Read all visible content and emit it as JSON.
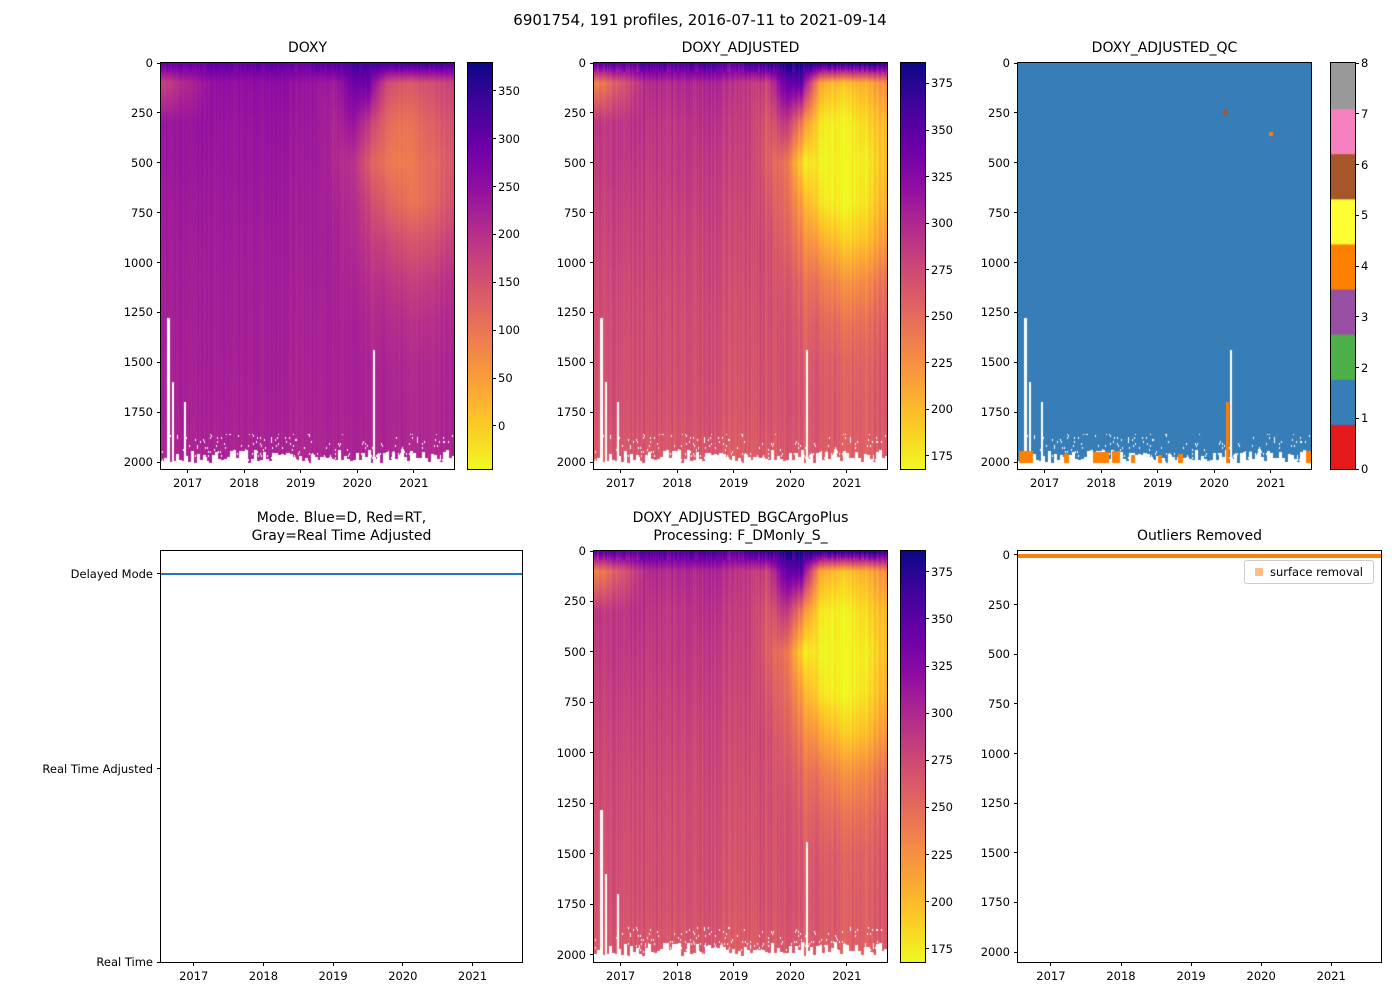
{
  "figure": {
    "title": "6901754, 191 profiles, 2016-07-11 to 2021-09-14"
  },
  "chart_data": [
    {
      "id": "doxy",
      "type": "heatmap",
      "title": "DOXY",
      "colormap": "plasma_r",
      "x_range": [
        2016.53,
        2021.71
      ],
      "x_ticks": [
        2017,
        2018,
        2019,
        2020,
        2021
      ],
      "depth_range": [
        0,
        2000
      ],
      "depth_ticks": [
        0,
        250,
        500,
        750,
        1000,
        1250,
        1500,
        1750,
        2000
      ],
      "vmin": -45,
      "vmax": 379,
      "colorbar_ticks": [
        0,
        50,
        100,
        150,
        200,
        250,
        300,
        350
      ],
      "x": [
        2016.6,
        2016.9,
        2017.2,
        2017.5,
        2017.8,
        2018.1,
        2018.4,
        2018.7,
        2019.0,
        2019.3,
        2019.6,
        2019.9,
        2020.2,
        2020.5,
        2020.8,
        2021.1,
        2021.4,
        2021.7
      ],
      "depths": [
        0,
        100,
        300,
        500,
        700,
        900,
        1100,
        1300,
        1500,
        1750,
        2000
      ],
      "values": [
        [
          295,
          300,
          298,
          305,
          300,
          298,
          306,
          302,
          299,
          305,
          315,
          325,
          338,
          330,
          340,
          348,
          342,
          332
        ],
        [
          175,
          205,
          228,
          248,
          246,
          250,
          248,
          250,
          245,
          238,
          228,
          282,
          292,
          165,
          140,
          150,
          162,
          172
        ],
        [
          238,
          236,
          242,
          240,
          238,
          240,
          242,
          240,
          238,
          234,
          215,
          240,
          190,
          120,
          100,
          118,
          138,
          150
        ],
        [
          235,
          236,
          238,
          235,
          236,
          238,
          236,
          235,
          234,
          232,
          210,
          200,
          140,
          100,
          90,
          108,
          122,
          142
        ],
        [
          230,
          232,
          233,
          231,
          232,
          233,
          232,
          231,
          230,
          229,
          219,
          205,
          170,
          130,
          110,
          105,
          128,
          150
        ],
        [
          228,
          229,
          230,
          229,
          230,
          229,
          228,
          229,
          228,
          227,
          222,
          209,
          189,
          169,
          152,
          148,
          160,
          176
        ],
        [
          225,
          226,
          226,
          226,
          226,
          226,
          226,
          226,
          225,
          225,
          222,
          215,
          204,
          194,
          184,
          180,
          190,
          201
        ],
        [
          224,
          224,
          225,
          224,
          225,
          224,
          224,
          224,
          224,
          223,
          222,
          219,
          213,
          207,
          202,
          200,
          205,
          210
        ],
        [
          222,
          223,
          223,
          223,
          223,
          223,
          223,
          222,
          222,
          222,
          221,
          220,
          217,
          214,
          211,
          210,
          212,
          215
        ],
        [
          220,
          221,
          221,
          221,
          221,
          221,
          221,
          220,
          220,
          220,
          220,
          219,
          218,
          216,
          214,
          214,
          215,
          217
        ],
        [
          215,
          216,
          216,
          216,
          216,
          216,
          216,
          215,
          215,
          215,
          215,
          215,
          214,
          213,
          212,
          212,
          213,
          214
        ]
      ],
      "gaps": [
        {
          "x": 2016.66,
          "from_depth": 1280
        },
        {
          "x": 2016.74,
          "from_depth": 1600
        },
        {
          "x": 2016.95,
          "from_depth": 1700
        },
        {
          "x": 2020.3,
          "from_depth": 1440
        }
      ]
    },
    {
      "id": "doxy_adjusted",
      "type": "heatmap",
      "title": "DOXY_ADJUSTED",
      "colormap": "plasma_r",
      "x_range": [
        2016.53,
        2021.71
      ],
      "x_ticks": [
        2017,
        2018,
        2019,
        2020,
        2021
      ],
      "depth_range": [
        0,
        2000
      ],
      "depth_ticks": [
        0,
        250,
        500,
        750,
        1000,
        1250,
        1500,
        1750,
        2000
      ],
      "vmin": 168,
      "vmax": 386,
      "colorbar_ticks": [
        175,
        200,
        225,
        250,
        275,
        300,
        325,
        350,
        375
      ],
      "x": [
        2016.6,
        2016.9,
        2017.2,
        2017.5,
        2017.8,
        2018.1,
        2018.4,
        2018.7,
        2019.0,
        2019.3,
        2019.6,
        2019.9,
        2020.2,
        2020.5,
        2020.8,
        2021.1,
        2021.4,
        2021.7
      ],
      "depths": [
        0,
        100,
        300,
        500,
        700,
        900,
        1100,
        1300,
        1500,
        1750,
        2000
      ],
      "values": [
        [
          350,
          355,
          352,
          360,
          356,
          352,
          362,
          358,
          354,
          362,
          368,
          375,
          380,
          376,
          380,
          383,
          380,
          374
        ],
        [
          235,
          255,
          278,
          298,
          296,
          300,
          298,
          300,
          295,
          288,
          278,
          340,
          348,
          215,
          195,
          200,
          212,
          225
        ],
        [
          288,
          286,
          292,
          290,
          288,
          290,
          292,
          290,
          288,
          284,
          262,
          288,
          238,
          178,
          170,
          176,
          190,
          200
        ],
        [
          285,
          286,
          288,
          285,
          286,
          288,
          286,
          285,
          284,
          282,
          258,
          245,
          185,
          170,
          168,
          172,
          180,
          198
        ],
        [
          280,
          282,
          283,
          281,
          282,
          283,
          282,
          281,
          280,
          279,
          266,
          250,
          215,
          180,
          170,
          172,
          186,
          205
        ],
        [
          277,
          278,
          279,
          278,
          279,
          278,
          277,
          278,
          277,
          276,
          271,
          257,
          236,
          212,
          196,
          192,
          204,
          220
        ],
        [
          274,
          275,
          275,
          275,
          275,
          275,
          275,
          275,
          274,
          274,
          271,
          264,
          252,
          240,
          229,
          225,
          235,
          246
        ],
        [
          272,
          272,
          273,
          272,
          273,
          272,
          272,
          272,
          272,
          271,
          270,
          267,
          260,
          253,
          248,
          246,
          251,
          256
        ],
        [
          270,
          271,
          271,
          271,
          271,
          271,
          271,
          270,
          270,
          270,
          269,
          268,
          264,
          261,
          258,
          257,
          259,
          262
        ],
        [
          268,
          269,
          269,
          269,
          269,
          269,
          269,
          268,
          268,
          268,
          268,
          267,
          266,
          263,
          261,
          261,
          262,
          264
        ],
        [
          262,
          263,
          263,
          263,
          263,
          263,
          263,
          262,
          262,
          262,
          262,
          262,
          261,
          260,
          259,
          259,
          260,
          261
        ]
      ],
      "gaps": [
        {
          "x": 2016.66,
          "from_depth": 1280
        },
        {
          "x": 2016.74,
          "from_depth": 1600
        },
        {
          "x": 2016.95,
          "from_depth": 1700
        },
        {
          "x": 2020.3,
          "from_depth": 1440
        }
      ]
    },
    {
      "id": "doxy_adjusted_qc",
      "type": "heatmap",
      "title": "DOXY_ADJUSTED_QC",
      "x_range": [
        2016.53,
        2021.71
      ],
      "x_ticks": [
        2017,
        2018,
        2019,
        2020,
        2021
      ],
      "depth_range": [
        0,
        2000
      ],
      "depth_ticks": [
        0,
        250,
        500,
        750,
        1000,
        1250,
        1500,
        1750,
        2000
      ],
      "flag_values": [
        0,
        1,
        2,
        3,
        4,
        5,
        6,
        7,
        8
      ],
      "colors": [
        "#e41a1c",
        "#377eb8",
        "#4daf4a",
        "#984ea3",
        "#ff7f00",
        "#ffff33",
        "#a65628",
        "#f781bf",
        "#999999"
      ],
      "colorbar_ticks": [
        0,
        1,
        2,
        3,
        4,
        5,
        6,
        7,
        8
      ],
      "base_value": 1,
      "marks": [
        {
          "x0": 2016.54,
          "x1": 2016.8,
          "d0": 1945,
          "d1": 2005,
          "flag": 4
        },
        {
          "x0": 2017.35,
          "x1": 2017.43,
          "d0": 1962,
          "d1": 2005,
          "flag": 4
        },
        {
          "x0": 2017.86,
          "x1": 2018.14,
          "d0": 1952,
          "d1": 2005,
          "flag": 4
        },
        {
          "x0": 2018.2,
          "x1": 2018.34,
          "d0": 1946,
          "d1": 2005,
          "flag": 4
        },
        {
          "x0": 2018.52,
          "x1": 2018.59,
          "d0": 1965,
          "d1": 2005,
          "flag": 4
        },
        {
          "x0": 2019.0,
          "x1": 2019.08,
          "d0": 1965,
          "d1": 2005,
          "flag": 4
        },
        {
          "x0": 2019.36,
          "x1": 2019.44,
          "d0": 1960,
          "d1": 2005,
          "flag": 4
        },
        {
          "x0": 2020.2,
          "x1": 2020.26,
          "d0": 1700,
          "d1": 2005,
          "flag": 4
        },
        {
          "x0": 2021.62,
          "x1": 2021.71,
          "d0": 1945,
          "d1": 2005,
          "flag": 4
        },
        {
          "x0": 2020.16,
          "x1": 2020.22,
          "d0": 235,
          "d1": 262,
          "flag": 6
        },
        {
          "x0": 2020.97,
          "x1": 2021.04,
          "d0": 345,
          "d1": 368,
          "flag": 4
        }
      ],
      "gaps": [
        {
          "x": 2016.66,
          "from_depth": 1280
        },
        {
          "x": 2016.74,
          "from_depth": 1600
        },
        {
          "x": 2016.95,
          "from_depth": 1700
        },
        {
          "x": 2020.3,
          "from_depth": 1440
        }
      ]
    },
    {
      "id": "mode",
      "type": "line",
      "title": "Mode. Blue=D, Red=RT,\nGray=Real Time Adjusted",
      "x_range": [
        2016.53,
        2021.71
      ],
      "x_ticks": [
        2017,
        2018,
        2019,
        2020,
        2021
      ],
      "y_categories": [
        "Delayed Mode",
        "Real Time Adjusted",
        "Real Time"
      ],
      "series": [
        {
          "name": "mode",
          "value": "Delayed Mode",
          "color": "#1f77b4"
        }
      ]
    },
    {
      "id": "doxy_adjusted_bgcargoplus",
      "type": "heatmap",
      "title": "DOXY_ADJUSTED_BGCArgoPlus\nProcessing: F_DMonly_S_",
      "colormap": "plasma_r",
      "x_range": [
        2016.53,
        2021.71
      ],
      "x_ticks": [
        2017,
        2018,
        2019,
        2020,
        2021
      ],
      "depth_range": [
        0,
        2000
      ],
      "depth_ticks": [
        0,
        250,
        500,
        750,
        1000,
        1250,
        1500,
        1750,
        2000
      ],
      "vmin": 168,
      "vmax": 386,
      "colorbar_ticks": [
        175,
        200,
        225,
        250,
        275,
        300,
        325,
        350,
        375
      ],
      "values_from": 1,
      "gaps": [
        {
          "x": 2016.66,
          "from_depth": 1280
        },
        {
          "x": 2016.74,
          "from_depth": 1600
        },
        {
          "x": 2016.95,
          "from_depth": 1700
        },
        {
          "x": 2020.3,
          "from_depth": 1440
        }
      ]
    },
    {
      "id": "outliers_removed",
      "type": "scatter",
      "title": "Outliers Removed",
      "x_range": [
        2016.53,
        2021.71
      ],
      "x_ticks": [
        2017,
        2018,
        2019,
        2020,
        2021
      ],
      "depth_range": [
        0,
        2000
      ],
      "depth_ticks": [
        0,
        250,
        500,
        750,
        1000,
        1250,
        1500,
        1750,
        2000
      ],
      "legend_position": "upper right",
      "series": [
        {
          "label": "surface removal",
          "depth": 8,
          "color": "#ff7f0e",
          "marker_color": "#ffbe85"
        }
      ]
    }
  ]
}
